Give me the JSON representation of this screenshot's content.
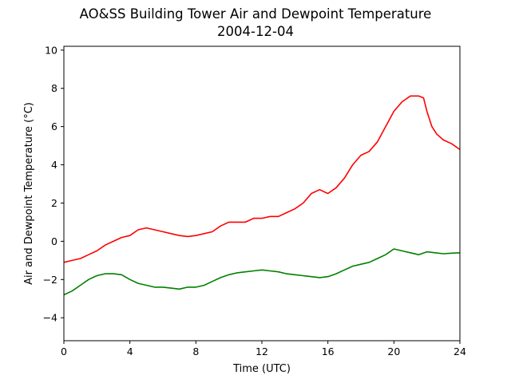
{
  "chart_data": {
    "type": "line",
    "title": "AO&SS Building Tower Air and Dewpoint Temperature",
    "subtitle": "2004-12-04",
    "xlabel": "Time (UTC)",
    "ylabel": "Air and Dewpoint Temperature (°C)",
    "xlim": [
      0,
      24
    ],
    "ylim": [
      -5.2,
      10.2
    ],
    "xticks": [
      0,
      4,
      8,
      12,
      16,
      20,
      24
    ],
    "yticks": [
      -4,
      -2,
      0,
      2,
      4,
      6,
      8,
      10
    ],
    "grid": false,
    "legend": "none",
    "series": [
      {
        "color": "#ff0000",
        "x": [
          0,
          0.5,
          1,
          1.5,
          2,
          2.5,
          3,
          3.5,
          4,
          4.5,
          5,
          5.5,
          6,
          6.5,
          7,
          7.5,
          8,
          8.5,
          9,
          9.5,
          10,
          10.5,
          11,
          11.5,
          12,
          12.5,
          13,
          13.5,
          14,
          14.5,
          15,
          15.5,
          16,
          16.5,
          17,
          17.5,
          18,
          18.5,
          19,
          19.5,
          20,
          20.5,
          21,
          21.5,
          21.8,
          22,
          22.3,
          22.6,
          23,
          23.5,
          24
        ],
        "y": [
          -1.1,
          -1.0,
          -0.9,
          -0.7,
          -0.5,
          -0.2,
          0.0,
          0.2,
          0.3,
          0.6,
          0.7,
          0.6,
          0.5,
          0.4,
          0.3,
          0.25,
          0.3,
          0.4,
          0.5,
          0.8,
          1.0,
          1.0,
          1.0,
          1.2,
          1.2,
          1.3,
          1.3,
          1.5,
          1.7,
          2.0,
          2.5,
          2.7,
          2.5,
          2.8,
          3.3,
          4.0,
          4.5,
          4.7,
          5.2,
          6.0,
          6.8,
          7.3,
          7.6,
          7.6,
          7.5,
          6.8,
          6.0,
          5.6,
          5.3,
          5.1,
          4.8
        ]
      },
      {
        "color": "#008000",
        "x": [
          0,
          0.5,
          1,
          1.5,
          2,
          2.5,
          3,
          3.5,
          4,
          4.5,
          5,
          5.5,
          6,
          6.5,
          7,
          7.5,
          8,
          8.5,
          9,
          9.5,
          10,
          10.5,
          11,
          11.5,
          12,
          12.5,
          13,
          13.5,
          14,
          14.5,
          15,
          15.5,
          16,
          16.5,
          17,
          17.5,
          18,
          18.5,
          19,
          19.5,
          20,
          20.5,
          21,
          21.5,
          22,
          22.5,
          23,
          23.5,
          24
        ],
        "y": [
          -2.8,
          -2.6,
          -2.3,
          -2.0,
          -1.8,
          -1.7,
          -1.7,
          -1.75,
          -2.0,
          -2.2,
          -2.3,
          -2.4,
          -2.4,
          -2.45,
          -2.5,
          -2.4,
          -2.4,
          -2.3,
          -2.1,
          -1.9,
          -1.75,
          -1.65,
          -1.6,
          -1.55,
          -1.5,
          -1.55,
          -1.6,
          -1.7,
          -1.75,
          -1.8,
          -1.85,
          -1.9,
          -1.85,
          -1.7,
          -1.5,
          -1.3,
          -1.2,
          -1.1,
          -0.9,
          -0.7,
          -0.4,
          -0.5,
          -0.6,
          -0.7,
          -0.55,
          -0.6,
          -0.65,
          -0.62,
          -0.6
        ]
      }
    ]
  }
}
